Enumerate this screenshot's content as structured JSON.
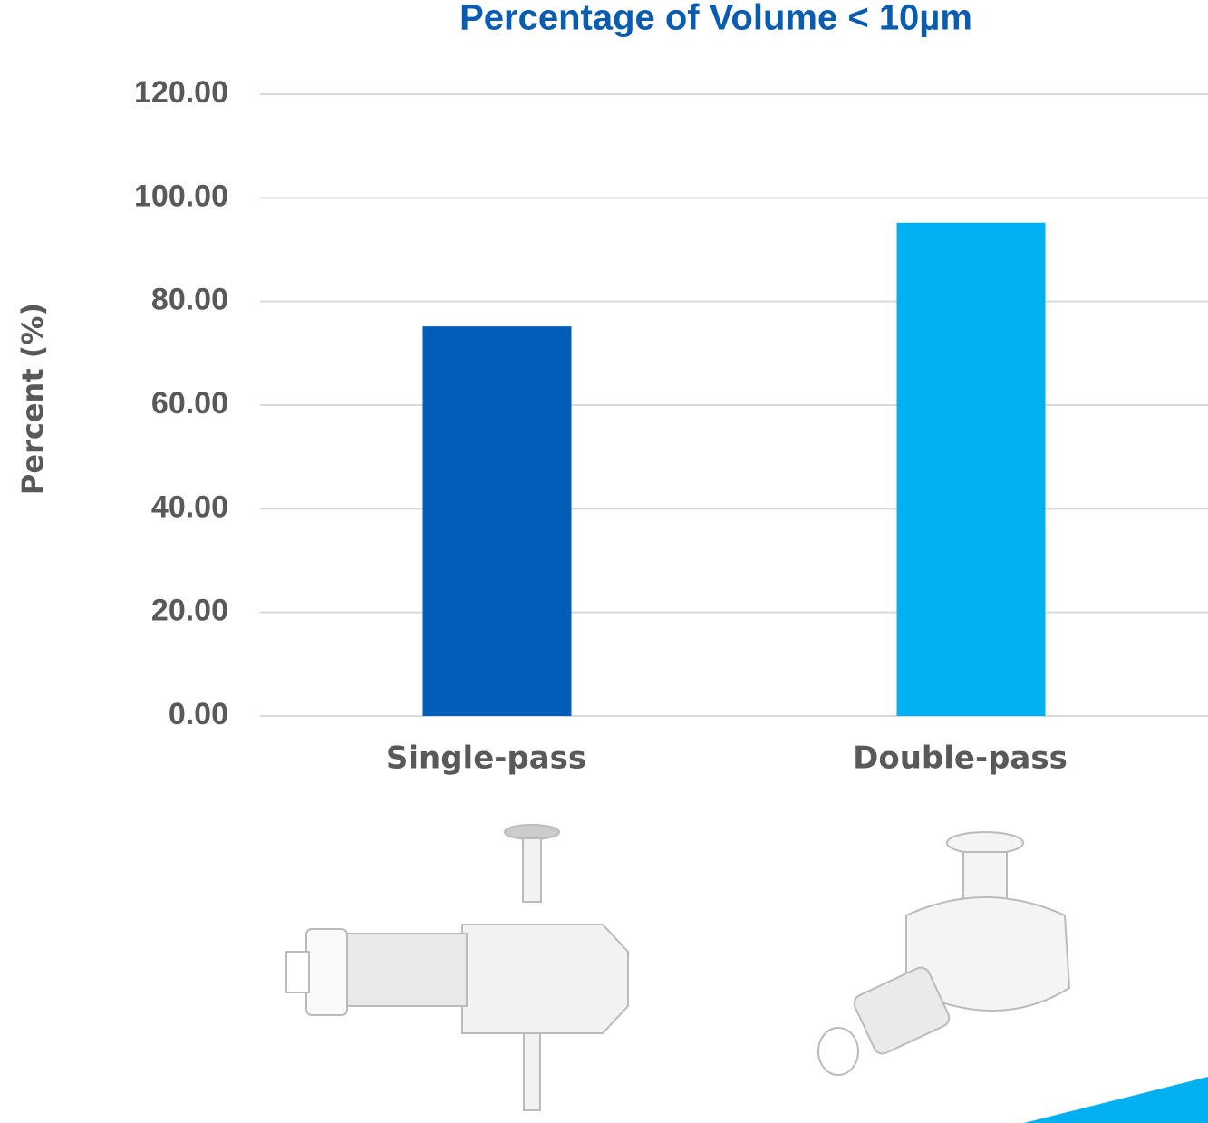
{
  "chart_data": {
    "type": "bar",
    "title": "Percentage of Volume < 10µm",
    "y_label": "Percent (%)",
    "categories": [
      "Single-pass",
      "Double-pass"
    ],
    "values": [
      75.2,
      95.2
    ],
    "colors": [
      "#005eb8",
      "#00b0f0"
    ],
    "ylim": [
      0,
      120
    ],
    "yticks": [
      {
        "value": 0,
        "label": "0.00"
      },
      {
        "value": 20,
        "label": "20.00"
      },
      {
        "value": 40,
        "label": "40.00"
      },
      {
        "value": 60,
        "label": "60.00"
      },
      {
        "value": 80,
        "label": "80.00"
      },
      {
        "value": 100,
        "label": "100.00"
      },
      {
        "value": 120,
        "label": "120.00"
      }
    ],
    "grid": true
  }
}
